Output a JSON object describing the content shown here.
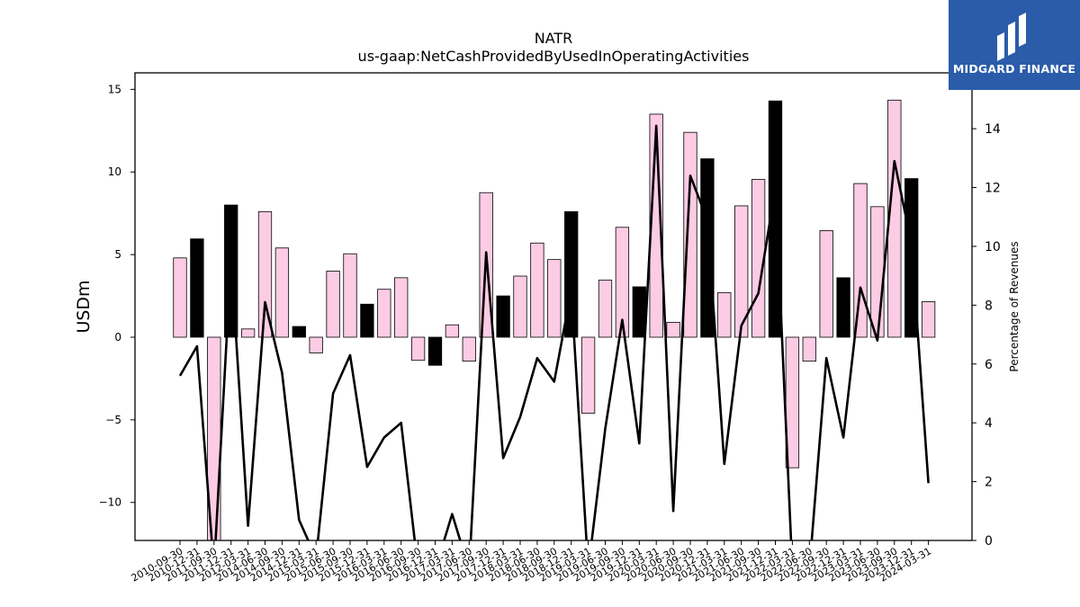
{
  "chart_data": {
    "type": "bar",
    "title": "NATR",
    "subtitle": "us-gaap:NetCashProvidedByUsedInOperatingActivities",
    "ylabel": "USDm",
    "y2label": "Percentage of Revenues",
    "ylim": [
      -12.3,
      16.0
    ],
    "y2lim": [
      0,
      15.9
    ],
    "yticks": [
      -10,
      -5,
      0,
      5,
      10,
      15
    ],
    "yticklabels": [
      "−10",
      "−5",
      "0",
      "5",
      "10",
      "15"
    ],
    "y2ticks": [
      0,
      2,
      4,
      6,
      8,
      10,
      12,
      14
    ],
    "categories": [
      "2010-09-30",
      "2010-12-31",
      "2011-09-30",
      "2011-12-31",
      "2012-03-31",
      "2014-06-30",
      "2014-09-30",
      "2014-12-31",
      "2015-03-31",
      "2015-06-30",
      "2015-09-30",
      "2015-12-31",
      "2016-03-31",
      "2016-06-30",
      "2016-09-30",
      "2016-12-31",
      "2017-03-31",
      "2017-06-30",
      "2017-09-30",
      "2017-12-31",
      "2018-03-31",
      "2018-06-30",
      "2018-09-30",
      "2018-12-31",
      "2019-03-31",
      "2019-06-30",
      "2019-09-30",
      "2019-12-31",
      "2020-03-31",
      "2020-06-30",
      "2020-09-30",
      "2020-12-31",
      "2021-03-31",
      "2021-06-30",
      "2021-09-30",
      "2021-12-31",
      "2022-03-31",
      "2022-06-30",
      "2022-09-30",
      "2022-12-31",
      "2023-03-31",
      "2023-06-30",
      "2023-09-30",
      "2023-12-31",
      "2024-03-31"
    ],
    "series": [
      {
        "kind": "bar",
        "values": [
          4.8,
          5.95,
          -12.3,
          8.0,
          0.5,
          7.6,
          5.4,
          0.65,
          -0.95,
          4.0,
          5.05,
          2.0,
          2.9,
          3.6,
          -1.4,
          -1.7,
          0.75,
          -1.45,
          8.75,
          2.5,
          3.7,
          5.7,
          4.7,
          7.6,
          -4.6,
          3.45,
          6.65,
          3.05,
          13.5,
          0.9,
          12.4,
          10.8,
          2.7,
          7.95,
          9.55,
          14.3,
          -7.9,
          -1.45,
          6.45,
          3.6,
          9.3,
          7.9,
          14.35,
          9.6,
          2.15
        ],
        "highlight": [
          false,
          true,
          false,
          true,
          false,
          false,
          false,
          true,
          false,
          false,
          false,
          true,
          false,
          false,
          false,
          true,
          false,
          false,
          false,
          true,
          false,
          false,
          false,
          true,
          false,
          false,
          false,
          true,
          false,
          false,
          false,
          true,
          false,
          false,
          false,
          true,
          false,
          false,
          false,
          true,
          false,
          false,
          false,
          true,
          false
        ]
      },
      {
        "kind": "line",
        "axis": "right",
        "values": [
          5.6,
          6.6,
          -1.0,
          9.6,
          0.5,
          8.1,
          5.7,
          0.7,
          -0.6,
          5.0,
          6.3,
          2.5,
          3.5,
          4.0,
          -1.0,
          -1.0,
          0.9,
          -1.0,
          9.8,
          2.8,
          4.2,
          6.2,
          5.4,
          8.5,
          -1.0,
          3.8,
          7.5,
          3.3,
          14.1,
          1.0,
          12.4,
          10.9,
          2.6,
          7.3,
          8.4,
          12.0,
          -1.0,
          -1.0,
          6.2,
          3.5,
          8.6,
          6.8,
          12.9,
          10.1,
          1.95
        ]
      }
    ],
    "colors": {
      "bar": "#fccbe4",
      "highlight": "#000000",
      "line": "#000000",
      "edge": "#000000"
    },
    "grid": false,
    "legend": "none"
  },
  "logo": {
    "text": "MIDGARD FINANCE",
    "background": "#2a5caa"
  }
}
